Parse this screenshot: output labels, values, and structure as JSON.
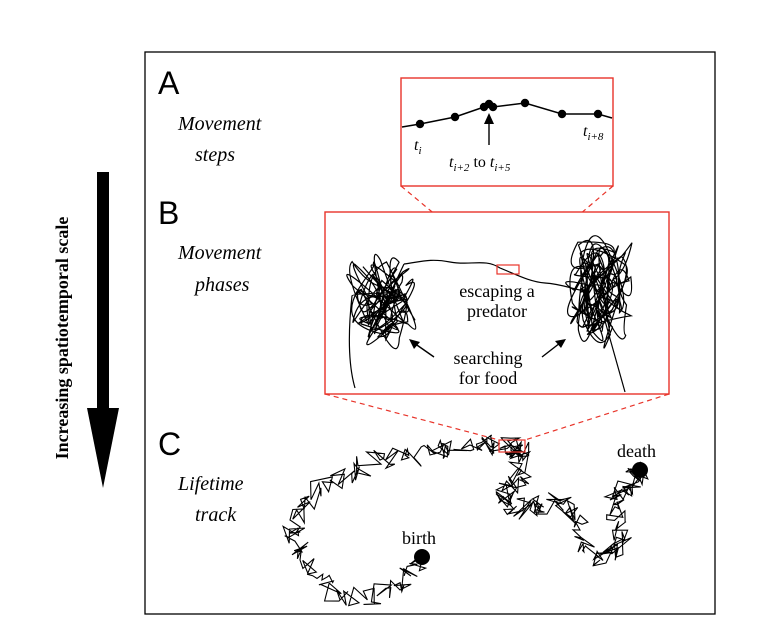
{
  "side_label": "Increasing spatiotemporal scale",
  "panels": [
    {
      "letter": "A",
      "line1": "Movement",
      "line2": "steps"
    },
    {
      "letter": "B",
      "line1": "Movement",
      "line2": "phases"
    },
    {
      "letter": "C",
      "line1": "Lifetime",
      "line2": "track"
    }
  ],
  "steps": {
    "t_i": {
      "base": "t",
      "sub": "i"
    },
    "t_range": {
      "base1": "t",
      "sub1": "i+2",
      "to": "to",
      "base2": "t",
      "sub2": "i+5"
    },
    "t_i8": {
      "base": "t",
      "sub": "i+8"
    }
  },
  "phases": {
    "escape1": "escaping a",
    "escape2": "predator",
    "search1": "searching",
    "search2": "for food"
  },
  "track": {
    "birth": "birth",
    "death": "death"
  },
  "colors": {
    "zoom_box": "#e8342a",
    "ink": "#000000"
  }
}
